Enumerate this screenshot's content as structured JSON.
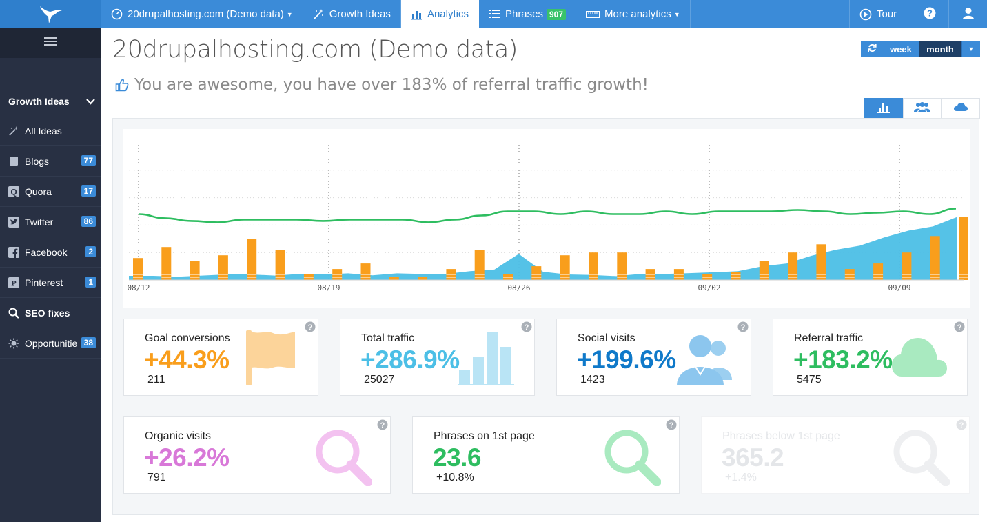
{
  "topnav": {
    "site_label": "20drupalhosting.com (Demo data)",
    "growth_ideas": "Growth Ideas",
    "analytics": "Analytics",
    "phrases": "Phrases",
    "phrases_count": "907",
    "more_analytics": "More analytics",
    "tour": "Tour"
  },
  "sidebar": {
    "section": "Growth Ideas",
    "items": [
      {
        "label": "All Ideas",
        "badge": ""
      },
      {
        "label": "Blogs",
        "badge": "77"
      },
      {
        "label": "Quora",
        "badge": "17"
      },
      {
        "label": "Twitter",
        "badge": "86"
      },
      {
        "label": "Facebook",
        "badge": "2"
      },
      {
        "label": "Pinterest",
        "badge": "1"
      },
      {
        "label": "SEO fixes",
        "badge": ""
      },
      {
        "label": "Opportunities",
        "badge": "38"
      }
    ]
  },
  "page": {
    "title": "20drupalhosting.com (Demo data)",
    "subtitle": "You are awesome, you have over 183% of referral traffic growth!"
  },
  "period": {
    "week": "week",
    "month": "month",
    "selected": "month"
  },
  "colors": {
    "accent": "#3b8bd8",
    "orange": "#f99e1c",
    "blue": "#4cbfe6",
    "green": "#2ebd60",
    "purple": "#d878d8",
    "dark_blue": "#0f79c9"
  },
  "chart_data": {
    "type": "bar",
    "x_ticks": [
      "08/12",
      "08/19",
      "08/26",
      "09/02",
      "09/09"
    ],
    "series": [
      {
        "name": "",
        "type": "bar",
        "color": "#f99e1c",
        "values": [
          8,
          12,
          7,
          9,
          15,
          11,
          2,
          4,
          6,
          1,
          1,
          4,
          11,
          2,
          5,
          9,
          10,
          10,
          4,
          4,
          2,
          3,
          7,
          10,
          13,
          4,
          6,
          10,
          16,
          23
        ]
      },
      {
        "name": "",
        "type": "area",
        "color": "#4cbfe6",
        "values": [
          1.5,
          1.5,
          1.2,
          1.6,
          2,
          2,
          1.6,
          2.2,
          2,
          2.4,
          1.7,
          2.4,
          2.2,
          2.2,
          3.2,
          3.8,
          9.5,
          3,
          2,
          1.8,
          1.4,
          2.2,
          2.2,
          2.5,
          2.8,
          3.2,
          5,
          6,
          8.8,
          11,
          12.5,
          15.5,
          18,
          19.5,
          23
        ]
      },
      {
        "name": "",
        "type": "line",
        "color": "#2ebd60",
        "values": [
          24,
          22.5,
          21.5,
          21,
          22,
          22,
          22,
          21.5,
          22,
          22,
          22,
          21,
          22,
          23.5,
          25,
          25,
          24,
          25,
          24,
          24,
          25,
          24,
          25,
          25,
          25,
          25.5,
          25,
          24,
          24.5,
          25,
          24,
          26
        ]
      }
    ],
    "ylim": [
      0,
      50
    ],
    "grid": true
  },
  "cards": [
    {
      "label": "Goal conversions",
      "value": "+44.3%",
      "sub": "211",
      "color": "#f99e1c",
      "icon": "flag-icon"
    },
    {
      "label": "Total traffic",
      "value": "+286.9%",
      "sub": "25027",
      "color": "#4cbfe6",
      "icon": "bar-chart-icon"
    },
    {
      "label": "Social visits",
      "value": "+199.6%",
      "sub": "1423",
      "color": "#0f79c9",
      "icon": "users-icon"
    },
    {
      "label": "Referral traffic",
      "value": "+183.2%",
      "sub": "5475",
      "color": "#2ebd60",
      "icon": "cloud-icon"
    },
    {
      "label": "Organic visits",
      "value": "+26.2%",
      "sub": "791",
      "color": "#d878d8",
      "icon": "magnifier-icon"
    },
    {
      "label": "Phrases on 1st page",
      "value": "23.6",
      "sub": "+10.8%",
      "color": "#2ebd60",
      "icon": "magnifier-icon"
    },
    {
      "label": "Phrases below 1st page",
      "value": "365.2",
      "sub": "+1.4%",
      "color": "#e4e6e9",
      "icon": "magnifier-icon"
    }
  ]
}
